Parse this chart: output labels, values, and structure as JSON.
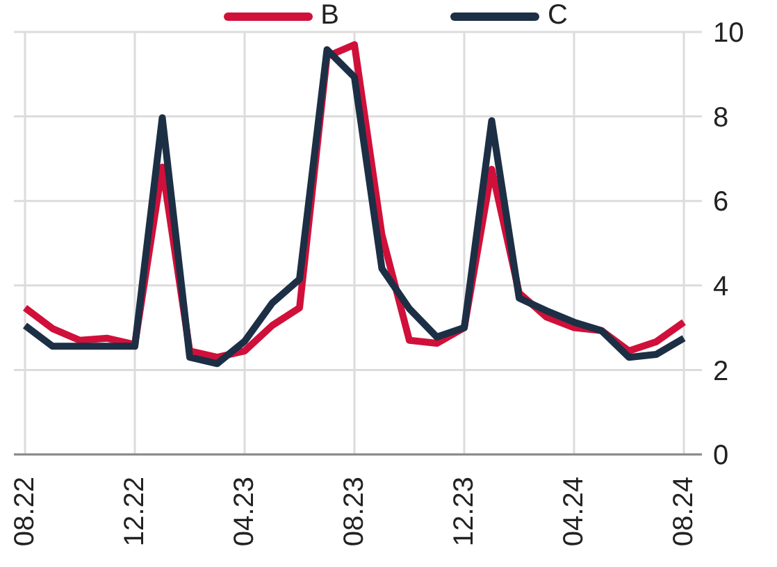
{
  "chart_data": {
    "type": "line",
    "categories": [
      "08.22",
      null,
      null,
      null,
      "12.22",
      null,
      null,
      null,
      "04.23",
      null,
      null,
      null,
      "08.23",
      null,
      null,
      null,
      "12.23",
      null,
      null,
      null,
      "04.24",
      null,
      null,
      null,
      "08.24"
    ],
    "series": [
      {
        "name": "B",
        "color": "#d0103a",
        "values": [
          3.47,
          2.98,
          2.7,
          2.75,
          2.6,
          6.8,
          2.45,
          2.3,
          2.45,
          3.05,
          3.47,
          9.42,
          9.7,
          5.2,
          2.7,
          2.63,
          3.0,
          6.75,
          3.82,
          3.25,
          3.0,
          2.93,
          2.45,
          2.67,
          3.13
        ]
      },
      {
        "name": "C",
        "color": "#1c2f45",
        "values": [
          3.05,
          2.56,
          2.56,
          2.56,
          2.56,
          7.97,
          2.3,
          2.15,
          2.68,
          3.58,
          4.15,
          9.58,
          8.93,
          4.4,
          3.45,
          2.78,
          3.0,
          7.9,
          3.7,
          3.4,
          3.13,
          2.93,
          2.3,
          2.37,
          2.75
        ]
      }
    ],
    "ylim": [
      0,
      10
    ],
    "yticks": [
      0,
      2,
      4,
      6,
      8,
      10
    ],
    "grid": true,
    "legend": "top",
    "marker": "none",
    "line_style": "solid"
  }
}
